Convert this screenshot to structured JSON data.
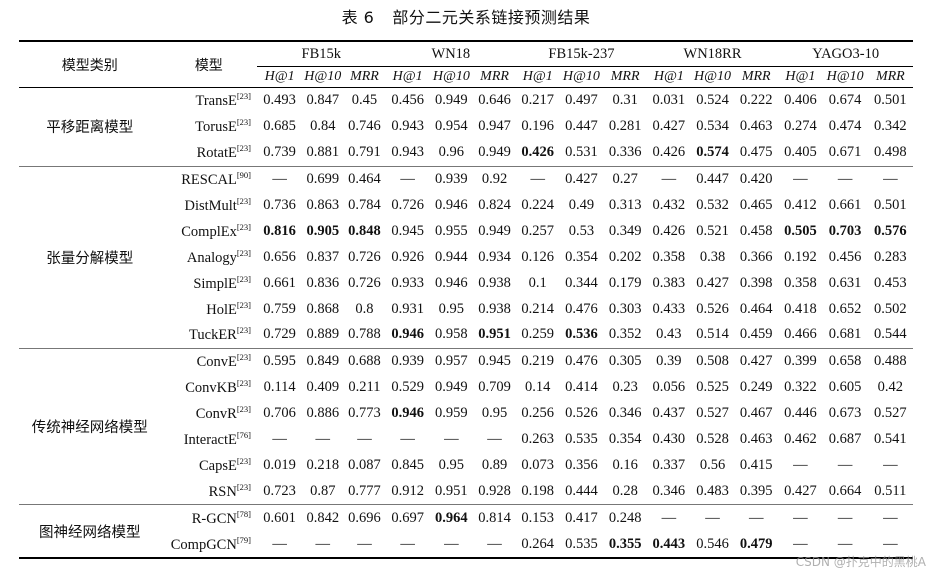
{
  "caption": {
    "number": "表 6",
    "title": "部分二元关系链接预测结果"
  },
  "headers": {
    "category": "模型类别",
    "model": "模型",
    "datasets": [
      "FB15k",
      "WN18",
      "FB15k-237",
      "WN18RR",
      "YAGO3-10"
    ],
    "metrics": [
      "H@1",
      "H@10",
      "MRR"
    ]
  },
  "groups": [
    {
      "category": "平移距离模型",
      "rows": [
        {
          "model": "TransE",
          "ref": "[23]",
          "values": [
            "0.493",
            "0.847",
            "0.45",
            "0.456",
            "0.949",
            "0.646",
            "0.217",
            "0.497",
            "0.31",
            "0.031",
            "0.524",
            "0.222",
            "0.406",
            "0.674",
            "0.501"
          ],
          "bold": []
        },
        {
          "model": "TorusE",
          "ref": "[23]",
          "values": [
            "0.685",
            "0.84",
            "0.746",
            "0.943",
            "0.954",
            "0.947",
            "0.196",
            "0.447",
            "0.281",
            "0.427",
            "0.534",
            "0.463",
            "0.274",
            "0.474",
            "0.342"
          ],
          "bold": []
        },
        {
          "model": "RotatE",
          "ref": "[23]",
          "values": [
            "0.739",
            "0.881",
            "0.791",
            "0.943",
            "0.96",
            "0.949",
            "0.426",
            "0.531",
            "0.336",
            "0.426",
            "0.574",
            "0.475",
            "0.405",
            "0.671",
            "0.498"
          ],
          "bold": [
            6,
            10
          ]
        }
      ]
    },
    {
      "category": "张量分解模型",
      "rows": [
        {
          "model": "RESCAL",
          "ref": "[90]",
          "values": [
            "—",
            "0.699",
            "0.464",
            "—",
            "0.939",
            "0.92",
            "—",
            "0.427",
            "0.27",
            "—",
            "0.447",
            "0.420",
            "—",
            "—",
            "—"
          ],
          "bold": []
        },
        {
          "model": "DistMult",
          "ref": "[23]",
          "values": [
            "0.736",
            "0.863",
            "0.784",
            "0.726",
            "0.946",
            "0.824",
            "0.224",
            "0.49",
            "0.313",
            "0.432",
            "0.532",
            "0.465",
            "0.412",
            "0.661",
            "0.501"
          ],
          "bold": []
        },
        {
          "model": "ComplEx",
          "ref": "[23]",
          "values": [
            "0.816",
            "0.905",
            "0.848",
            "0.945",
            "0.955",
            "0.949",
            "0.257",
            "0.53",
            "0.349",
            "0.426",
            "0.521",
            "0.458",
            "0.505",
            "0.703",
            "0.576"
          ],
          "bold": [
            0,
            1,
            2,
            12,
            13,
            14
          ]
        },
        {
          "model": "Analogy",
          "ref": "[23]",
          "values": [
            "0.656",
            "0.837",
            "0.726",
            "0.926",
            "0.944",
            "0.934",
            "0.126",
            "0.354",
            "0.202",
            "0.358",
            "0.38",
            "0.366",
            "0.192",
            "0.456",
            "0.283"
          ],
          "bold": []
        },
        {
          "model": "SimplE",
          "ref": "[23]",
          "values": [
            "0.661",
            "0.836",
            "0.726",
            "0.933",
            "0.946",
            "0.938",
            "0.1",
            "0.344",
            "0.179",
            "0.383",
            "0.427",
            "0.398",
            "0.358",
            "0.631",
            "0.453"
          ],
          "bold": []
        },
        {
          "model": "HolE",
          "ref": "[23]",
          "values": [
            "0.759",
            "0.868",
            "0.8",
            "0.931",
            "0.95",
            "0.938",
            "0.214",
            "0.476",
            "0.303",
            "0.433",
            "0.526",
            "0.464",
            "0.418",
            "0.652",
            "0.502"
          ],
          "bold": []
        },
        {
          "model": "TuckER",
          "ref": "[23]",
          "values": [
            "0.729",
            "0.889",
            "0.788",
            "0.946",
            "0.958",
            "0.951",
            "0.259",
            "0.536",
            "0.352",
            "0.43",
            "0.514",
            "0.459",
            "0.466",
            "0.681",
            "0.544"
          ],
          "bold": [
            3,
            5,
            7
          ]
        }
      ]
    },
    {
      "category": "传统神经网络模型",
      "rows": [
        {
          "model": "ConvE",
          "ref": "[23]",
          "values": [
            "0.595",
            "0.849",
            "0.688",
            "0.939",
            "0.957",
            "0.945",
            "0.219",
            "0.476",
            "0.305",
            "0.39",
            "0.508",
            "0.427",
            "0.399",
            "0.658",
            "0.488"
          ],
          "bold": []
        },
        {
          "model": "ConvKB",
          "ref": "[23]",
          "values": [
            "0.114",
            "0.409",
            "0.211",
            "0.529",
            "0.949",
            "0.709",
            "0.14",
            "0.414",
            "0.23",
            "0.056",
            "0.525",
            "0.249",
            "0.322",
            "0.605",
            "0.42"
          ],
          "bold": []
        },
        {
          "model": "ConvR",
          "ref": "[23]",
          "values": [
            "0.706",
            "0.886",
            "0.773",
            "0.946",
            "0.959",
            "0.95",
            "0.256",
            "0.526",
            "0.346",
            "0.437",
            "0.527",
            "0.467",
            "0.446",
            "0.673",
            "0.527"
          ],
          "bold": [
            3
          ]
        },
        {
          "model": "InteractE",
          "ref": "[76]",
          "values": [
            "—",
            "—",
            "—",
            "—",
            "—",
            "—",
            "0.263",
            "0.535",
            "0.354",
            "0.430",
            "0.528",
            "0.463",
            "0.462",
            "0.687",
            "0.541"
          ],
          "bold": []
        },
        {
          "model": "CapsE",
          "ref": "[23]",
          "values": [
            "0.019",
            "0.218",
            "0.087",
            "0.845",
            "0.95",
            "0.89",
            "0.073",
            "0.356",
            "0.16",
            "0.337",
            "0.56",
            "0.415",
            "—",
            "—",
            "—"
          ],
          "bold": []
        },
        {
          "model": "RSN",
          "ref": "[23]",
          "values": [
            "0.723",
            "0.87",
            "0.777",
            "0.912",
            "0.951",
            "0.928",
            "0.198",
            "0.444",
            "0.28",
            "0.346",
            "0.483",
            "0.395",
            "0.427",
            "0.664",
            "0.511"
          ],
          "bold": []
        }
      ]
    },
    {
      "category": "图神经网络模型",
      "rows": [
        {
          "model": "R-GCN",
          "ref": "[78]",
          "values": [
            "0.601",
            "0.842",
            "0.696",
            "0.697",
            "0.964",
            "0.814",
            "0.153",
            "0.417",
            "0.248",
            "—",
            "—",
            "—",
            "—",
            "—",
            "—"
          ],
          "bold": [
            4
          ]
        },
        {
          "model": "CompGCN",
          "ref": "[79]",
          "values": [
            "—",
            "—",
            "—",
            "—",
            "—",
            "—",
            "0.264",
            "0.535",
            "0.355",
            "0.443",
            "0.546",
            "0.479",
            "—",
            "—",
            "—"
          ],
          "bold": [
            8,
            9,
            11
          ]
        }
      ]
    }
  ],
  "watermark": "CSDN @扑克中的黑桃A"
}
